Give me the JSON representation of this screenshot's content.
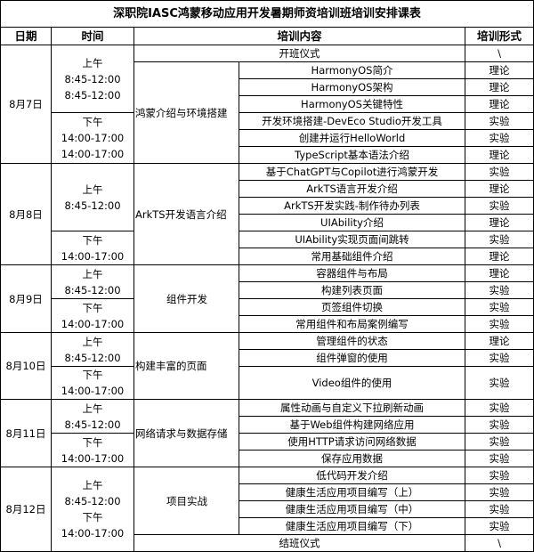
{
  "title": "深职院IASC鸿蒙移动应用开发暑期师资培训班培训安排课表",
  "headers": [
    "日期",
    "时间",
    "培训内容",
    "培训形式"
  ],
  "days": [
    {
      "date": "8月7日",
      "slots": [
        {
          "lines": [
            "上午",
            "8:45-12:00",
            "8:45-12:00"
          ],
          "rows": 4
        },
        {
          "lines": [
            "下午",
            "14:00-17:00",
            "14:00-17:00"
          ],
          "rows": 3
        }
      ],
      "opening": {
        "content": "开班仪式",
        "form": "\\"
      },
      "topic": "鸿蒙介绍与环境搭建",
      "items": [
        {
          "content": "HarmonyOS简介",
          "form": "理论"
        },
        {
          "content": "HarmonyOS架构",
          "form": "理论"
        },
        {
          "content": "HarmonyOS关键特性",
          "form": "理论"
        },
        {
          "content": "开发环境搭建-DevEco Studio开发工具",
          "form": "实验"
        },
        {
          "content": "创建并运行HelloWorld",
          "form": "实验"
        },
        {
          "content": "TypeScript基本语法介绍",
          "form": "理论"
        }
      ]
    },
    {
      "date": "8月8日",
      "slots": [
        {
          "lines": [
            "上午",
            "8:45-12:00"
          ],
          "rows": 4
        },
        {
          "lines": [
            "下午",
            "14:00-17:00"
          ],
          "rows": 2
        }
      ],
      "topic": "ArkTS开发语言介绍",
      "items": [
        {
          "content": "基于ChatGPT与Copilot进行鸿蒙开发",
          "form": "实验"
        },
        {
          "content": "ArkTS语言开发介绍",
          "form": "理论"
        },
        {
          "content": "ArkTS开发实践-制作待办列表",
          "form": "实验"
        },
        {
          "content": "UIAbility介绍",
          "form": "理论"
        },
        {
          "content": "UIAbility实现页面间跳转",
          "form": "实验"
        },
        {
          "content": "常用基础组件介绍",
          "form": "理论"
        }
      ]
    },
    {
      "date": "8月9日",
      "slots": [
        {
          "lines": [
            "上午",
            "8:45-12:00"
          ],
          "rows": 2
        },
        {
          "lines": [
            "下午",
            "14:00-17:00"
          ],
          "rows": 2
        }
      ],
      "topic": "组件开发",
      "items": [
        {
          "content": "容器组件与布局",
          "form": "理论"
        },
        {
          "content": "构建列表页面",
          "form": "实验"
        },
        {
          "content": "页签组件切换",
          "form": "实验"
        },
        {
          "content": "常用组件和布局案例编写",
          "form": "实验"
        }
      ]
    },
    {
      "date": "8月10日",
      "slots": [
        {
          "lines": [
            "上午",
            "8:45-12:00"
          ],
          "rows": 2
        },
        {
          "lines": [
            "下午",
            "14:00-17:00"
          ],
          "rows": 1
        }
      ],
      "topic": "构建丰富的页面",
      "items": [
        {
          "content": "管理组件的状态",
          "form": "理论"
        },
        {
          "content": "组件弹窗的使用",
          "form": "实验"
        },
        {
          "content": "Video组件的使用",
          "form": "实验"
        }
      ]
    },
    {
      "date": "8月11日",
      "slots": [
        {
          "lines": [
            "上午",
            "8:45-12:00"
          ],
          "rows": 2
        },
        {
          "lines": [
            "下午",
            "14:00-17:00"
          ],
          "rows": 2
        }
      ],
      "topic": "网络请求与数据存储",
      "items": [
        {
          "content": "属性动画与自定义下拉刷新动画",
          "form": "实验"
        },
        {
          "content": "基于Web组件构建网络应用",
          "form": "实验"
        },
        {
          "content": "使用HTTP请求访问网络数据",
          "form": "实验"
        },
        {
          "content": "保存应用数据",
          "form": "实验"
        }
      ]
    },
    {
      "date": "8月12日",
      "slots": [
        {
          "lines": [
            "上午",
            "8:45-12:00",
            "下午",
            "14:00-17:00"
          ],
          "rows": 5
        }
      ],
      "topic": "项目实战",
      "items": [
        {
          "content": "低代码开发介绍",
          "form": "实验"
        },
        {
          "content": "健康生活应用项目编写（上）",
          "form": "实验"
        },
        {
          "content": "健康生活应用项目编写（中）",
          "form": "实验"
        },
        {
          "content": "健康生活应用项目编写（下）",
          "form": "实验"
        }
      ],
      "closing": {
        "content": "结班仪式",
        "form": "\\"
      }
    }
  ]
}
